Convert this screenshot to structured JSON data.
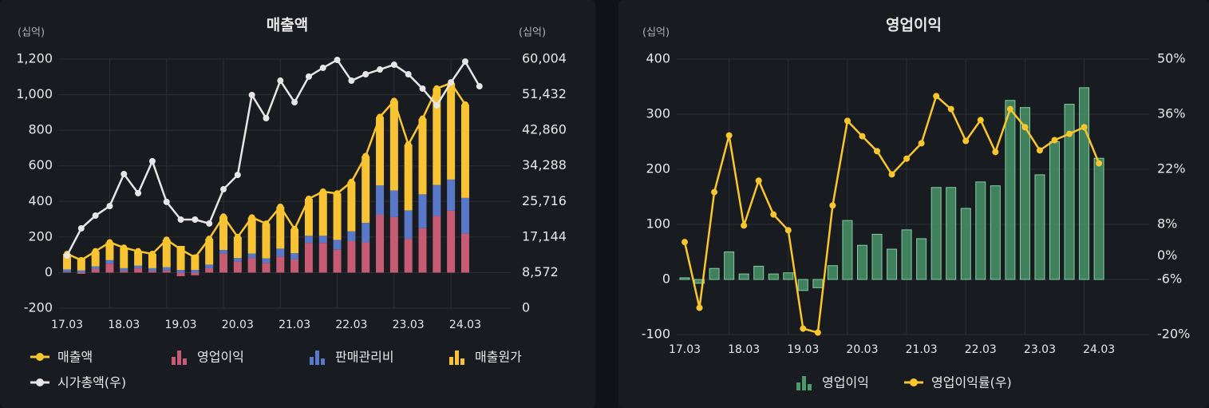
{
  "chart_data": [
    {
      "type": "combo",
      "title": "매출액",
      "y_unit": "(십억)",
      "y2_unit": "(십억)",
      "stacked": true,
      "grid": true,
      "categories": [
        "17.03",
        null,
        null,
        null,
        "18.03",
        null,
        null,
        null,
        "19.03",
        null,
        null,
        null,
        "20.03",
        null,
        null,
        null,
        "21.03",
        null,
        null,
        null,
        "22.03",
        null,
        null,
        null,
        "23.03",
        null,
        null,
        null,
        "24.03",
        null
      ],
      "ylim": [
        -200,
        1200
      ],
      "yticks": [
        -200,
        0,
        200,
        400,
        600,
        800,
        {
          "value": 1000,
          "label": "1,000"
        },
        {
          "value": 1200,
          "label": "1,200"
        }
      ],
      "y2lim": [
        0,
        60004
      ],
      "y2ticks": [
        0,
        {
          "value": 8572,
          "label": "8,572"
        },
        {
          "value": 17144,
          "label": "17,144"
        },
        {
          "value": 25716,
          "label": "25,716"
        },
        {
          "value": 34288,
          "label": "34,288"
        },
        {
          "value": 42860,
          "label": "42,860"
        },
        {
          "value": 51432,
          "label": "51,432"
        },
        {
          "value": 60004,
          "label": "60,004"
        }
      ],
      "series": [
        {
          "name": "매출액",
          "type": "line",
          "color": "#f9c62e",
          "values": [
            105,
            70,
            120,
            170,
            140,
            120,
            105,
            185,
            130,
            85,
            190,
            315,
            200,
            310,
            275,
            370,
            245,
            415,
            455,
            445,
            510,
            655,
            875,
            965,
            720,
            865,
            1035,
            1065,
            945,
            null
          ]
        },
        {
          "name": "영업이익",
          "type": "bar",
          "color": "#c65b74",
          "values": [
            3,
            -7,
            20,
            50,
            10,
            24,
            10,
            12,
            -20,
            -15,
            25,
            107,
            62,
            82,
            55,
            90,
            74,
            167,
            167,
            129,
            177,
            170,
            325,
            312,
            190,
            250,
            318,
            348,
            220,
            null
          ]
        },
        {
          "name": "판매관리비",
          "type": "bar",
          "color": "#5a78c8",
          "values": [
            15,
            12,
            15,
            20,
            15,
            15,
            15,
            18,
            15,
            15,
            20,
            20,
            20,
            25,
            25,
            45,
            35,
            40,
            40,
            55,
            55,
            110,
            165,
            150,
            160,
            190,
            175,
            175,
            200,
            null
          ]
        },
        {
          "name": "매출원가",
          "type": "bar",
          "color": "#f7c233",
          "values": [
            87,
            65,
            85,
            100,
            115,
            81,
            80,
            155,
            135,
            85,
            145,
            188,
            118,
            203,
            195,
            235,
            136,
            208,
            248,
            261,
            278,
            375,
            385,
            503,
            370,
            425,
            542,
            542,
            525,
            null
          ]
        },
        {
          "name": "시가총액(우)",
          "type": "line",
          "axis": "y2",
          "color": "#e6e6e6",
          "values": [
            12700,
            19230,
            22300,
            24600,
            32300,
            27700,
            35400,
            25600,
            21350,
            21350,
            20400,
            28650,
            32100,
            51350,
            45770,
            54800,
            49600,
            55800,
            57900,
            59800,
            54800,
            56350,
            57500,
            58650,
            56350,
            52900,
            48850,
            54400,
            59400,
            53460
          ]
        }
      ]
    },
    {
      "type": "combo",
      "title": "영업이익",
      "y_unit": "(십억)",
      "grid": true,
      "categories": [
        "17.03",
        null,
        null,
        null,
        "18.03",
        null,
        null,
        null,
        "19.03",
        null,
        null,
        null,
        "20.03",
        null,
        null,
        null,
        "21.03",
        null,
        null,
        null,
        "22.03",
        null,
        null,
        null,
        "23.03",
        null,
        null,
        null,
        "24.03"
      ],
      "ylim": [
        -100,
        400
      ],
      "yticks": [
        -100,
        0,
        100,
        200,
        300,
        400
      ],
      "y2lim": [
        -20,
        50
      ],
      "y2ticks": [
        {
          "value": -20,
          "label": "-20%"
        },
        {
          "value": -6,
          "label": "-6%"
        },
        {
          "value": 0,
          "label": "0%"
        },
        {
          "value": 8,
          "label": "8%"
        },
        {
          "value": 22,
          "label": "22%"
        },
        {
          "value": 36,
          "label": "36%"
        },
        {
          "value": 50,
          "label": "50%"
        }
      ],
      "series": [
        {
          "name": "영업이익",
          "type": "bar",
          "color": "#4b9a6c",
          "values": [
            3,
            -7,
            20,
            50,
            10,
            24,
            10,
            12,
            -20,
            -15,
            25,
            107,
            62,
            82,
            55,
            90,
            74,
            167,
            167,
            129,
            177,
            170,
            325,
            312,
            190,
            250,
            318,
            348,
            220
          ]
        },
        {
          "name": "영업이익률(우)",
          "type": "line",
          "axis": "y2",
          "color": "#f9c62e",
          "values": [
            3.5,
            -13.2,
            16.2,
            30.6,
            7.7,
            19.1,
            10.5,
            6.5,
            -18.5,
            -19.5,
            12.8,
            34.3,
            30.4,
            26.6,
            20.7,
            24.7,
            28.6,
            40.6,
            37.3,
            29.2,
            34.5,
            26.4,
            37.3,
            32.7,
            26.8,
            29.4,
            31.0,
            32.7,
            23.5
          ]
        }
      ]
    }
  ]
}
